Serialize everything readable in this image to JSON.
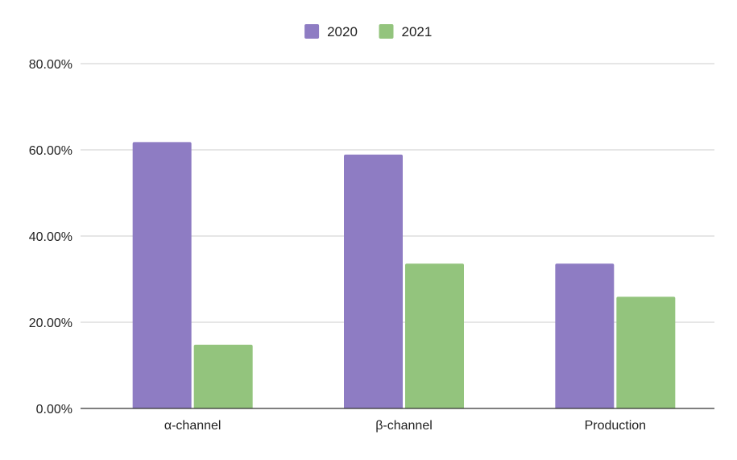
{
  "chart_data": {
    "type": "bar",
    "title": "",
    "xlabel": "",
    "ylabel": "",
    "categories": [
      "α-channel",
      "β-channel",
      "Production"
    ],
    "series": [
      {
        "name": "2020",
        "color": "#8e7cc3",
        "values": [
          61.8,
          58.9,
          33.6
        ]
      },
      {
        "name": "2021",
        "color": "#93c47d",
        "values": [
          14.8,
          33.6,
          25.9
        ]
      }
    ],
    "ylim": [
      0,
      80
    ],
    "yticks": [
      0,
      20,
      40,
      60,
      80
    ],
    "ytick_labels": [
      "0.00%",
      "20.00%",
      "40.00%",
      "60.00%",
      "80.00%"
    ],
    "grid": true,
    "legend_position": "top-center",
    "colors": {
      "grid": "#cccccc",
      "axis": "#333333"
    }
  }
}
